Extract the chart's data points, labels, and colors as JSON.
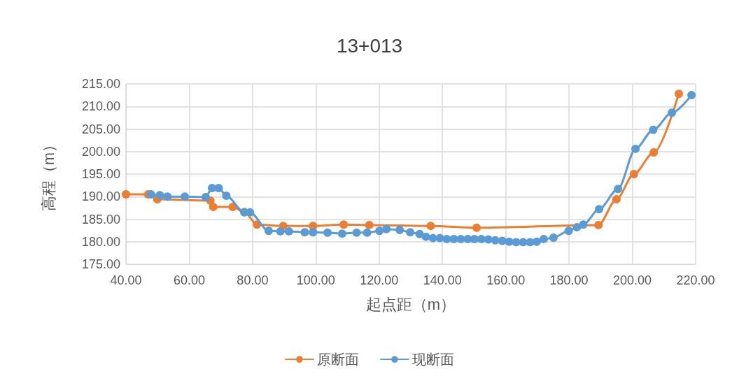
{
  "chart_data": {
    "type": "line",
    "title": "13+013",
    "xlabel": "起点距（m）",
    "ylabel": "高程（m）",
    "xlim": [
      40,
      220
    ],
    "xticks": [
      {
        "value": 40,
        "label": "40.00"
      },
      {
        "value": 60,
        "label": "60.00"
      },
      {
        "value": 80,
        "label": "80.00"
      },
      {
        "value": 100,
        "label": "100.00"
      },
      {
        "value": 120,
        "label": "120.00"
      },
      {
        "value": 140,
        "label": "140.00"
      },
      {
        "value": 160,
        "label": "160.00"
      },
      {
        "value": 180,
        "label": "180.00"
      },
      {
        "value": 200,
        "label": "200.00"
      },
      {
        "value": 220,
        "label": "220.00"
      }
    ],
    "ylim": [
      175,
      215
    ],
    "yticks": [
      {
        "value": 175,
        "label": "175.00"
      },
      {
        "value": 180,
        "label": "180.00"
      },
      {
        "value": 185,
        "label": "185.00"
      },
      {
        "value": 190,
        "label": "190.00"
      },
      {
        "value": 195,
        "label": "195.00"
      },
      {
        "value": 200,
        "label": "200.00"
      },
      {
        "value": 205,
        "label": "205.00"
      },
      {
        "value": 210,
        "label": "210.00"
      },
      {
        "value": 215,
        "label": "215.00"
      }
    ],
    "grid": true,
    "legend": "bottom",
    "marker": "circle",
    "line_style": "solid",
    "series": [
      {
        "name": "原断面",
        "color": "#ed7d31",
        "x": [
          40,
          47,
          49.9,
          66.7,
          67.6,
          73.7,
          77.4,
          81.4,
          89.7,
          99.1,
          108.8,
          116.9,
          136.3,
          150.8,
          189.3,
          195,
          200.5,
          206.8,
          214.7
        ],
        "values": [
          190.5,
          190.5,
          189.4,
          189.1,
          187.7,
          187.7,
          186.6,
          183.8,
          183.5,
          183.5,
          183.8,
          183.7,
          183.5,
          183.1,
          183.7,
          189.4,
          195,
          199.8,
          212.8
        ]
      },
      {
        "name": "现断面",
        "color": "#5b9bd5",
        "x": [
          47.9,
          50.7,
          53.1,
          58.6,
          65.2,
          67.2,
          69.3,
          71.7,
          77.4,
          79.2,
          85.1,
          88.8,
          91.5,
          96.5,
          99.1,
          103.7,
          108.3,
          112.9,
          116.2,
          120.1,
          122.3,
          126.5,
          129.8,
          132.8,
          134.8,
          137,
          139.2,
          141.4,
          143.6,
          145.8,
          148,
          150.1,
          152.3,
          154.5,
          156.7,
          158.9,
          161.1,
          163.3,
          165.5,
          167.7,
          169.8,
          172,
          175.1,
          179.9,
          182.5,
          184.5,
          189.5,
          195.5,
          201,
          206.6,
          212.5,
          218.7
        ],
        "values": [
          190.5,
          190.3,
          190,
          190,
          189.9,
          191.9,
          191.9,
          190.2,
          186.5,
          186.5,
          182.4,
          182.3,
          182.3,
          182.1,
          182.1,
          182,
          181.8,
          182,
          182,
          182.4,
          182.8,
          182.6,
          182.1,
          181.7,
          181.1,
          180.8,
          180.8,
          180.6,
          180.6,
          180.6,
          180.6,
          180.6,
          180.6,
          180.5,
          180.3,
          180.2,
          180,
          179.9,
          179.9,
          179.9,
          180,
          180.6,
          180.9,
          182.4,
          183.2,
          183.8,
          187.2,
          191.7,
          200.6,
          204.8,
          208.6,
          212.5
        ]
      }
    ]
  }
}
